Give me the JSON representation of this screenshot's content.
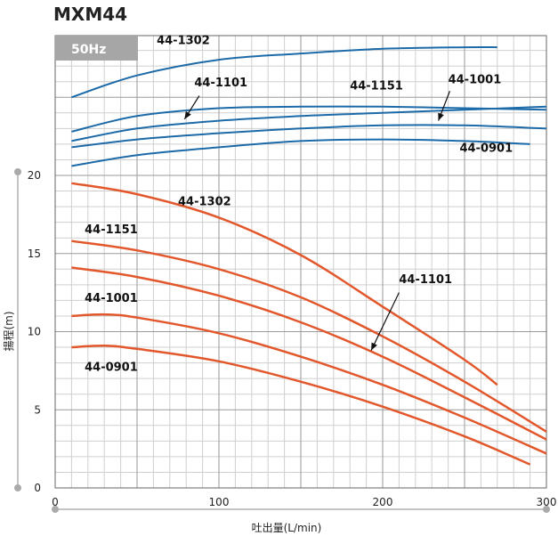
{
  "title": "MXM44",
  "badge": "50Hz",
  "chart_data": {
    "type": "line",
    "title": "MXM44",
    "xlabel": "吐出量(L/min)",
    "ylabel": "揚程(m)",
    "xlim": [
      0,
      300
    ],
    "ylim": [
      0,
      20
    ],
    "x_ticks": [
      0,
      100,
      200,
      300
    ],
    "y_ticks": [
      0,
      5,
      10,
      15,
      20
    ],
    "grid": true,
    "head_series": [
      {
        "name": "44-1302",
        "x": [
          10,
          50,
          100,
          150,
          200,
          250,
          270
        ],
        "y": [
          19.5,
          18.8,
          17.3,
          14.9,
          11.6,
          8.2,
          6.6
        ]
      },
      {
        "name": "44-1151",
        "x": [
          10,
          50,
          100,
          150,
          200,
          250,
          300
        ],
        "y": [
          15.8,
          15.2,
          14.0,
          12.2,
          9.7,
          6.8,
          3.6
        ]
      },
      {
        "name": "44-1101",
        "x": [
          10,
          50,
          100,
          150,
          200,
          250,
          300
        ],
        "y": [
          14.1,
          13.5,
          12.3,
          10.6,
          8.4,
          5.8,
          3.1
        ]
      },
      {
        "name": "44-1001",
        "x": [
          10,
          30,
          50,
          100,
          150,
          200,
          250,
          300
        ],
        "y": [
          11.0,
          11.1,
          10.9,
          9.9,
          8.4,
          6.6,
          4.5,
          2.2
        ]
      },
      {
        "name": "44-0901",
        "x": [
          10,
          30,
          50,
          100,
          150,
          200,
          250,
          290
        ],
        "y": [
          9.0,
          9.1,
          8.9,
          8.1,
          6.8,
          5.2,
          3.3,
          1.5
        ]
      }
    ],
    "efficiency_series": [
      {
        "name": "44-1302",
        "x": [
          10,
          50,
          100,
          150,
          200,
          250,
          270
        ],
        "y": [
          25.0,
          26.4,
          27.4,
          27.8,
          28.1,
          28.2,
          28.2
        ]
      },
      {
        "name": "44-1151",
        "x": [
          10,
          50,
          100,
          150,
          200,
          250,
          300
        ],
        "y": [
          22.8,
          23.8,
          24.3,
          24.4,
          24.4,
          24.3,
          24.2
        ]
      },
      {
        "name": "44-1101",
        "x": [
          10,
          50,
          100,
          150,
          200,
          250,
          300
        ],
        "y": [
          22.2,
          23.0,
          23.5,
          23.8,
          24.0,
          24.2,
          24.4
        ]
      },
      {
        "name": "44-1001",
        "x": [
          10,
          50,
          100,
          150,
          200,
          250,
          300
        ],
        "y": [
          21.8,
          22.3,
          22.7,
          23.0,
          23.2,
          23.2,
          23.0
        ]
      },
      {
        "name": "44-0901",
        "x": [
          10,
          50,
          100,
          150,
          200,
          250,
          290
        ],
        "y": [
          20.6,
          21.3,
          21.8,
          22.2,
          22.3,
          22.2,
          22.0
        ]
      }
    ],
    "annotations": [
      {
        "text": "44-1302",
        "x": 62,
        "y": 28.4
      },
      {
        "text": "44-1101",
        "x": 85,
        "y": 25.7
      },
      {
        "text": "44-1151",
        "x": 180,
        "y": 25.5
      },
      {
        "text": "44-1001",
        "x": 240,
        "y": 25.9
      },
      {
        "text": "44-0901",
        "x": 247,
        "y": 21.5
      },
      {
        "text": "44-1302",
        "x": 75,
        "y": 18.1
      },
      {
        "text": "44-1151",
        "x": 18,
        "y": 16.3
      },
      {
        "text": "44-1101",
        "x": 210,
        "y": 13.1
      },
      {
        "text": "44-1001",
        "x": 18,
        "y": 11.9
      },
      {
        "text": "44-0901",
        "x": 18,
        "y": 7.5
      }
    ],
    "arrows": [
      {
        "from": [
          88,
          25.1
        ],
        "to": [
          79,
          23.6
        ]
      },
      {
        "from": [
          241,
          25.4
        ],
        "to": [
          234,
          23.5
        ]
      },
      {
        "from": [
          210,
          12.5
        ],
        "to": [
          193,
          8.8
        ]
      }
    ],
    "colors": {
      "head": "#e2582c",
      "efficiency": "#1c6aa8",
      "badge": "#a6a6a6"
    }
  }
}
